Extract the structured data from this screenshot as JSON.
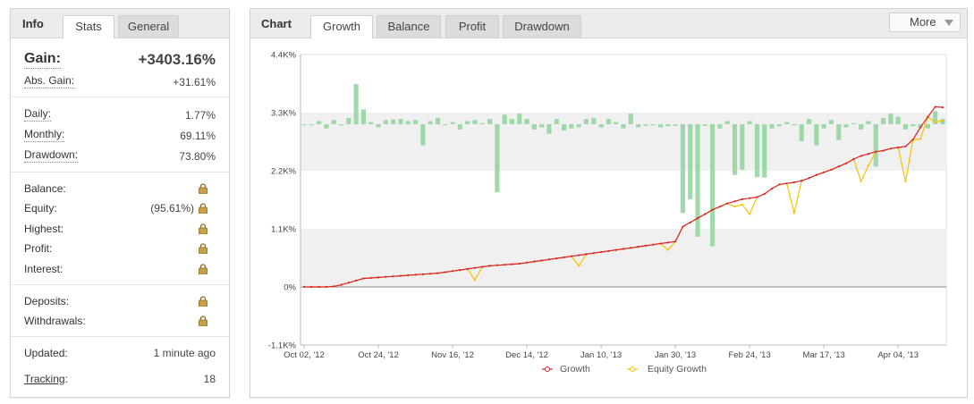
{
  "info_panel": {
    "title": "Info",
    "tabs": [
      {
        "label": "Stats",
        "active": true
      },
      {
        "label": "General",
        "active": false
      }
    ],
    "gain": {
      "label": "Gain:",
      "value": "+3403.16%"
    },
    "abs_gain": {
      "label": "Abs. Gain:",
      "value": "+31.61%"
    },
    "daily": {
      "label": "Daily:",
      "value": "1.77%"
    },
    "monthly": {
      "label": "Monthly:",
      "value": "69.11%"
    },
    "drawdown": {
      "label": "Drawdown:",
      "value": "73.80%"
    },
    "balance": {
      "label": "Balance:"
    },
    "equity": {
      "label": "Equity:",
      "value": "(95.61%)"
    },
    "highest": {
      "label": "Highest:"
    },
    "profit": {
      "label": "Profit:"
    },
    "interest": {
      "label": "Interest:"
    },
    "deposits": {
      "label": "Deposits:"
    },
    "withdrawals": {
      "label": "Withdrawals:"
    },
    "updated": {
      "label": "Updated:",
      "value": "1 minute ago"
    },
    "tracking": {
      "label": "Tracking",
      "colon": ":",
      "value": "18"
    },
    "lock_icon": "lock-icon"
  },
  "chart_panel": {
    "title": "Chart",
    "tabs": [
      {
        "label": "Growth",
        "active": true
      },
      {
        "label": "Balance",
        "active": false
      },
      {
        "label": "Profit",
        "active": false
      },
      {
        "label": "Drawdown",
        "active": false
      }
    ],
    "more_label": "More",
    "legend": [
      "Growth",
      "Equity Growth"
    ]
  },
  "chart_data": {
    "type": "line",
    "y_ticks": [
      "4.4K%",
      "3.3K%",
      "2.2K%",
      "1.1K%",
      "0%",
      "-1.1K%"
    ],
    "y_tick_values": [
      4400,
      3300,
      2200,
      1100,
      0,
      -1100
    ],
    "ylim": [
      -1100,
      4400
    ],
    "x_tick_labels": [
      "Oct 02, '12",
      "Oct 24, '12",
      "Nov 16, '12",
      "Dec 14, '12",
      "Jan 10, '13",
      "Jan 30, '13",
      "Feb 24, '13",
      "Mar 17, '13",
      "Apr 04, '13"
    ],
    "x_tick_index": [
      0,
      10,
      20,
      30,
      40,
      50,
      60,
      70,
      80
    ],
    "grid": "alternating horizontal bands",
    "legend_position": "bottom",
    "colors": {
      "growth": "#d9232d",
      "equity": "#f5c400",
      "bars": "#8fd49b",
      "band": "#f0f0f0"
    },
    "series": [
      {
        "name": "Growth",
        "values": [
          0,
          0,
          0,
          0,
          10,
          40,
          80,
          120,
          160,
          170,
          180,
          190,
          200,
          210,
          220,
          230,
          240,
          250,
          260,
          280,
          300,
          320,
          340,
          360,
          380,
          400,
          410,
          420,
          430,
          440,
          460,
          480,
          500,
          520,
          540,
          560,
          580,
          600,
          620,
          640,
          660,
          680,
          700,
          720,
          740,
          760,
          780,
          800,
          820,
          840,
          860,
          1140,
          1220,
          1300,
          1380,
          1460,
          1520,
          1580,
          1620,
          1660,
          1680,
          1700,
          1760,
          1860,
          1940,
          1960,
          1980,
          2010,
          2060,
          2120,
          2170,
          2220,
          2280,
          2340,
          2420,
          2480,
          2520,
          2560,
          2580,
          2620,
          2640,
          2660,
          2790,
          3020,
          3220,
          3410,
          3400
        ]
      },
      {
        "name": "Equity Growth",
        "values": [
          0,
          0,
          0,
          0,
          10,
          40,
          80,
          120,
          160,
          170,
          180,
          190,
          200,
          210,
          220,
          230,
          240,
          250,
          260,
          280,
          300,
          320,
          340,
          130,
          380,
          400,
          410,
          420,
          430,
          440,
          460,
          480,
          500,
          520,
          540,
          560,
          580,
          400,
          620,
          640,
          660,
          680,
          700,
          720,
          740,
          760,
          780,
          800,
          820,
          700,
          860,
          1140,
          1220,
          1300,
          1380,
          1460,
          1520,
          1580,
          1520,
          1560,
          1380,
          1700,
          1760,
          1860,
          1940,
          1960,
          1400,
          2010,
          2060,
          2120,
          2170,
          2220,
          2280,
          2340,
          2420,
          2000,
          2300,
          2560,
          2580,
          2620,
          2640,
          2000,
          2790,
          2800,
          3220,
          3120,
          3150
        ]
      },
      {
        "name": "Profit",
        "values": [
          0,
          0,
          60,
          -80,
          80,
          -20,
          120,
          760,
          280,
          40,
          -60,
          80,
          90,
          100,
          60,
          80,
          -400,
          60,
          120,
          -20,
          40,
          -100,
          60,
          80,
          20,
          100,
          -1290,
          180,
          100,
          200,
          100,
          -100,
          -60,
          -180,
          100,
          -120,
          -80,
          -60,
          100,
          120,
          -60,
          100,
          40,
          -80,
          200,
          -60,
          -30,
          -20,
          -60,
          -40,
          -30,
          -1680,
          -1420,
          -2130,
          -30,
          -2310,
          -80,
          60,
          -960,
          -860,
          60,
          -1000,
          -1010,
          -80,
          -40,
          40,
          -20,
          -320,
          100,
          -400,
          -80,
          80,
          -300,
          -60,
          20,
          -100,
          60,
          -800,
          120,
          200,
          140,
          -100,
          -40,
          -60,
          -80,
          250,
          100
        ]
      }
    ]
  }
}
